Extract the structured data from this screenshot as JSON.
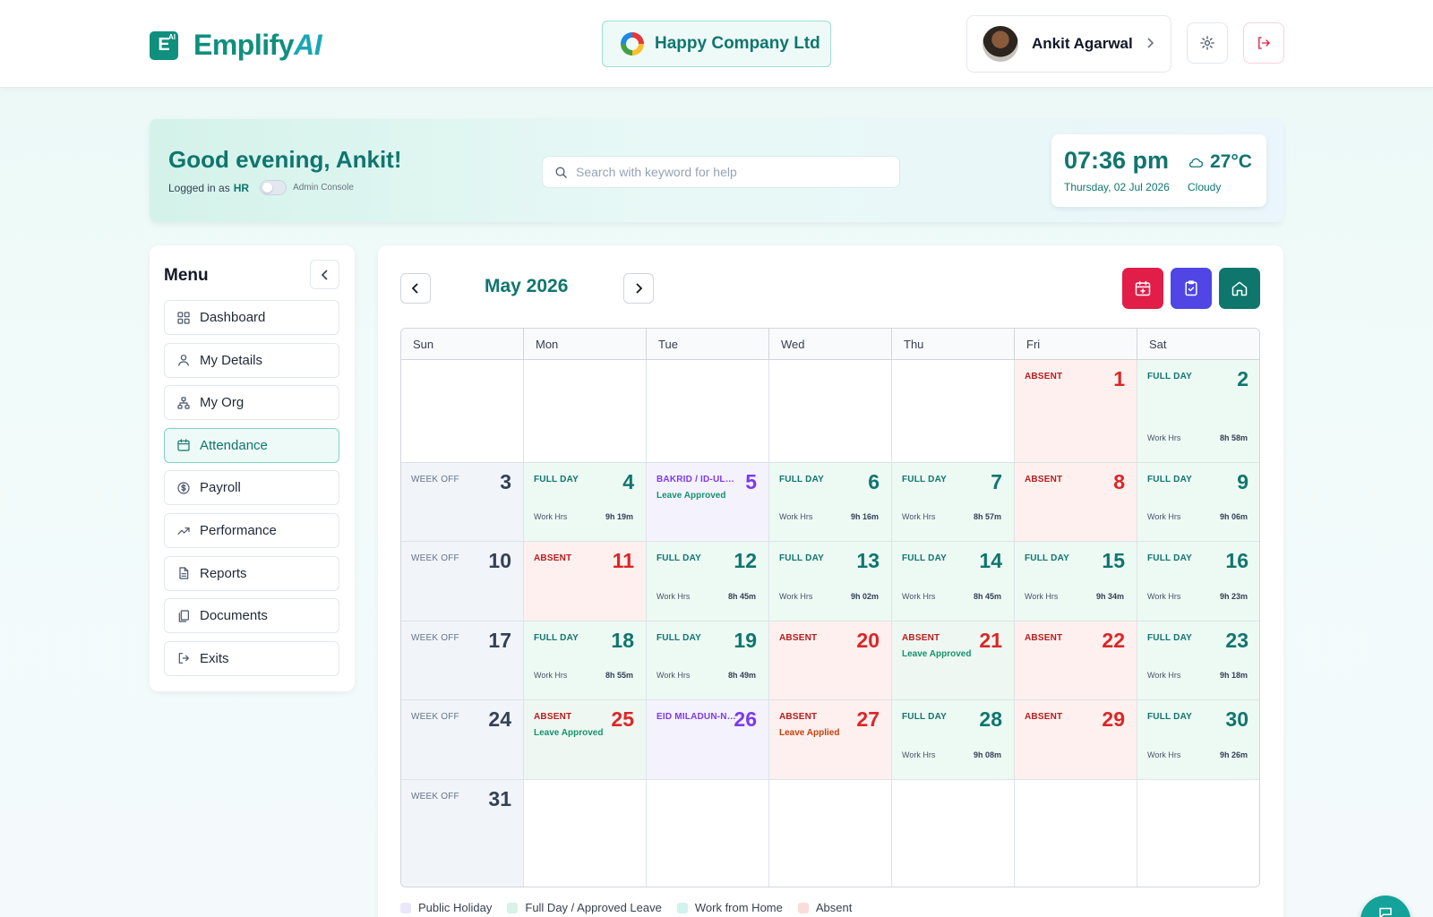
{
  "brand": {
    "mark": "E",
    "mark_sup": "AI",
    "name_main": "Emplify",
    "name_ai": "AI"
  },
  "company": {
    "name": "Happy Company Ltd"
  },
  "user": {
    "name": "Ankit Agarwal"
  },
  "greeting": {
    "title": "Good evening, Ankit!",
    "logged_prefix": "Logged in as",
    "role": "HR",
    "admin_label": "Admin Console"
  },
  "search": {
    "placeholder": "Search with keyword for help",
    "value": ""
  },
  "clock": {
    "time": "07:36 pm",
    "date": "Thursday, 02 Jul 2026",
    "temp": "27°C",
    "condition": "Cloudy"
  },
  "menu": {
    "title": "Menu",
    "items": [
      {
        "label": "Dashboard",
        "icon": "grid-icon",
        "active": false
      },
      {
        "label": "My Details",
        "icon": "user-icon",
        "active": false
      },
      {
        "label": "My Org",
        "icon": "org-icon",
        "active": false
      },
      {
        "label": "Attendance",
        "icon": "calendar-icon",
        "active": true
      },
      {
        "label": "Payroll",
        "icon": "dollar-icon",
        "active": false
      },
      {
        "label": "Performance",
        "icon": "trend-icon",
        "active": false
      },
      {
        "label": "Reports",
        "icon": "file-icon",
        "active": false
      },
      {
        "label": "Documents",
        "icon": "documents-icon",
        "active": false
      },
      {
        "label": "Exits",
        "icon": "exit-icon",
        "active": false
      }
    ]
  },
  "calendar": {
    "month": "May 2026",
    "weekdays": [
      "Sun",
      "Mon",
      "Tue",
      "Wed",
      "Thu",
      "Fri",
      "Sat"
    ],
    "work_hrs_label": "Work Hrs",
    "weeks": [
      [
        {
          "kind": "empty"
        },
        {
          "kind": "empty"
        },
        {
          "kind": "empty"
        },
        {
          "kind": "empty"
        },
        {
          "kind": "empty"
        },
        {
          "day": "1",
          "kind": "absent",
          "status": "ABSENT"
        },
        {
          "day": "2",
          "kind": "full",
          "status": "FULL DAY",
          "hours": "8h 58m"
        }
      ],
      [
        {
          "day": "3",
          "kind": "weekoff",
          "status": "WEEK OFF"
        },
        {
          "day": "4",
          "kind": "full",
          "status": "FULL DAY",
          "hours": "9h 19m"
        },
        {
          "day": "5",
          "kind": "holiday",
          "status": "BAKRID / ID-UL-ZUHA",
          "note": "Leave Approved"
        },
        {
          "day": "6",
          "kind": "full",
          "status": "FULL DAY",
          "hours": "9h 16m"
        },
        {
          "day": "7",
          "kind": "full",
          "status": "FULL DAY",
          "hours": "8h 57m"
        },
        {
          "day": "8",
          "kind": "absent",
          "status": "ABSENT"
        },
        {
          "day": "9",
          "kind": "full",
          "status": "FULL DAY",
          "hours": "9h 06m"
        }
      ],
      [
        {
          "day": "10",
          "kind": "weekoff",
          "status": "WEEK OFF"
        },
        {
          "day": "11",
          "kind": "absent",
          "status": "ABSENT"
        },
        {
          "day": "12",
          "kind": "full",
          "status": "FULL DAY",
          "hours": "8h 45m"
        },
        {
          "day": "13",
          "kind": "full",
          "status": "FULL DAY",
          "hours": "9h 02m"
        },
        {
          "day": "14",
          "kind": "full",
          "status": "FULL DAY",
          "hours": "8h 45m"
        },
        {
          "day": "15",
          "kind": "full",
          "status": "FULL DAY",
          "hours": "9h 34m"
        },
        {
          "day": "16",
          "kind": "full",
          "status": "FULL DAY",
          "hours": "9h 23m"
        }
      ],
      [
        {
          "day": "17",
          "kind": "weekoff",
          "status": "WEEK OFF"
        },
        {
          "day": "18",
          "kind": "full",
          "status": "FULL DAY",
          "hours": "8h 55m"
        },
        {
          "day": "19",
          "kind": "full",
          "status": "FULL DAY",
          "hours": "8h 49m"
        },
        {
          "day": "20",
          "kind": "absent",
          "status": "ABSENT"
        },
        {
          "day": "21",
          "kind": "absent",
          "status": "ABSENT",
          "note": "Leave Approved",
          "note_bg": "#eef7f2"
        },
        {
          "day": "22",
          "kind": "absent",
          "status": "ABSENT"
        },
        {
          "day": "23",
          "kind": "full",
          "status": "FULL DAY",
          "hours": "9h 18m"
        }
      ],
      [
        {
          "day": "24",
          "kind": "weekoff",
          "status": "WEEK OFF"
        },
        {
          "day": "25",
          "kind": "absent",
          "status": "ABSENT",
          "note": "Leave Approved",
          "note_bg": "#eef7f2"
        },
        {
          "day": "26",
          "kind": "holiday",
          "status": "EID MILADUN-NABI"
        },
        {
          "day": "27",
          "kind": "absent",
          "status": "ABSENT",
          "note": "Leave Applied",
          "applied": true
        },
        {
          "day": "28",
          "kind": "full",
          "status": "FULL DAY",
          "hours": "9h 08m"
        },
        {
          "day": "29",
          "kind": "absent",
          "status": "ABSENT"
        },
        {
          "day": "30",
          "kind": "full",
          "status": "FULL DAY",
          "hours": "9h 26m"
        }
      ],
      [
        {
          "day": "31",
          "kind": "weekoff",
          "status": "WEEK OFF"
        },
        {
          "kind": "empty"
        },
        {
          "kind": "empty"
        },
        {
          "kind": "empty"
        },
        {
          "kind": "empty"
        },
        {
          "kind": "empty"
        },
        {
          "kind": "empty"
        }
      ]
    ]
  },
  "legend": [
    {
      "label": "Public Holiday",
      "color": "#ebe7fb"
    },
    {
      "label": "Full Day / Approved Leave",
      "color": "#d6f3e4"
    },
    {
      "label": "Work from Home",
      "color": "#d2f2ee"
    },
    {
      "label": "Absent",
      "color": "#fbdcdc"
    }
  ],
  "colors": {
    "primary": "#0f766e",
    "absent": "#dc2626",
    "holiday": "#7c3aed",
    "red_btn": "#e11d48",
    "purple_btn": "#4f46e5",
    "green_btn": "#0f766e"
  }
}
